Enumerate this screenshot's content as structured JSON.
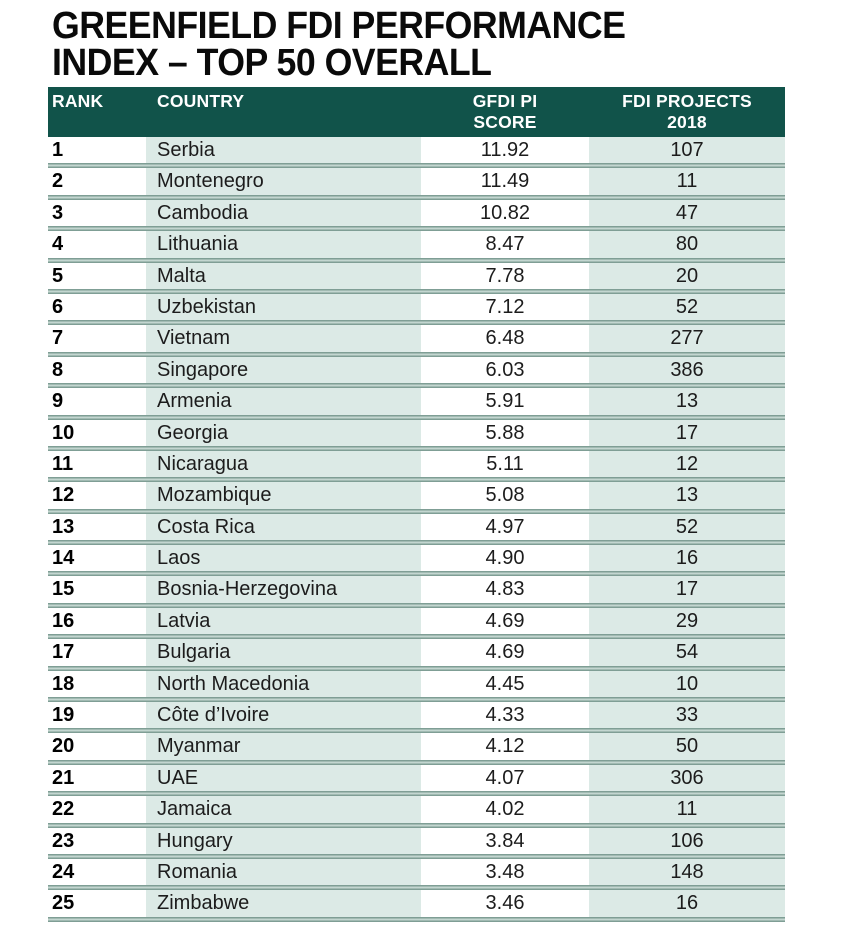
{
  "title": {
    "line1": "GREENFIELD FDI PERFORMANCE",
    "line2": "INDEX – TOP 50 OVERALL"
  },
  "table": {
    "header": {
      "rank": "RANK",
      "country": "COUNTRY",
      "score_line1": "GFDI PI",
      "score_line2": "SCORE",
      "projects_line1": "FDI PROJECTS",
      "projects_line2": "2018"
    }
  },
  "colors": {
    "header_bg": "#11534a",
    "column_tint": "#dceae6",
    "separator_dark": "#7f9e95",
    "separator_light": "#c3d6d0",
    "title_text": "#0a0a0a",
    "body_text": "#1c1c1c"
  },
  "chart_data": {
    "type": "table",
    "title": "GREENFIELD FDI PERFORMANCE INDEX – TOP 50 OVERALL",
    "columns": [
      "RANK",
      "COUNTRY",
      "GFDI PI SCORE",
      "FDI PROJECTS 2018"
    ],
    "rows": [
      {
        "rank": "1",
        "country": "Serbia",
        "score": "11.92",
        "projects": "107"
      },
      {
        "rank": "2",
        "country": "Montenegro",
        "score": "11.49",
        "projects": "11"
      },
      {
        "rank": "3",
        "country": "Cambodia",
        "score": "10.82",
        "projects": "47"
      },
      {
        "rank": "4",
        "country": "Lithuania",
        "score": "8.47",
        "projects": "80"
      },
      {
        "rank": "5",
        "country": "Malta",
        "score": "7.78",
        "projects": "20"
      },
      {
        "rank": "6",
        "country": "Uzbekistan",
        "score": "7.12",
        "projects": "52"
      },
      {
        "rank": "7",
        "country": "Vietnam",
        "score": "6.48",
        "projects": "277"
      },
      {
        "rank": "8",
        "country": "Singapore",
        "score": "6.03",
        "projects": "386"
      },
      {
        "rank": "9",
        "country": "Armenia",
        "score": "5.91",
        "projects": "13"
      },
      {
        "rank": "10",
        "country": "Georgia",
        "score": "5.88",
        "projects": "17"
      },
      {
        "rank": "11",
        "country": "Nicaragua",
        "score": "5.11",
        "projects": "12"
      },
      {
        "rank": "12",
        "country": "Mozambique",
        "score": "5.08",
        "projects": "13"
      },
      {
        "rank": "13",
        "country": "Costa Rica",
        "score": "4.97",
        "projects": "52"
      },
      {
        "rank": "14",
        "country": "Laos",
        "score": "4.90",
        "projects": "16"
      },
      {
        "rank": "15",
        "country": "Bosnia-Herzegovina",
        "score": "4.83",
        "projects": "17"
      },
      {
        "rank": "16",
        "country": "Latvia",
        "score": "4.69",
        "projects": "29"
      },
      {
        "rank": "17",
        "country": "Bulgaria",
        "score": "4.69",
        "projects": "54"
      },
      {
        "rank": "18",
        "country": "North Macedonia",
        "score": "4.45",
        "projects": "10"
      },
      {
        "rank": "19",
        "country": "Côte d’Ivoire",
        "score": "4.33",
        "projects": "33"
      },
      {
        "rank": "20",
        "country": "Myanmar",
        "score": "4.12",
        "projects": "50"
      },
      {
        "rank": "21",
        "country": "UAE",
        "score": "4.07",
        "projects": "306"
      },
      {
        "rank": "22",
        "country": "Jamaica",
        "score": "4.02",
        "projects": "11"
      },
      {
        "rank": "23",
        "country": "Hungary",
        "score": "3.84",
        "projects": "106"
      },
      {
        "rank": "24",
        "country": "Romania",
        "score": "3.48",
        "projects": "148"
      },
      {
        "rank": "25",
        "country": "Zimbabwe",
        "score": "3.46",
        "projects": "16"
      }
    ]
  }
}
